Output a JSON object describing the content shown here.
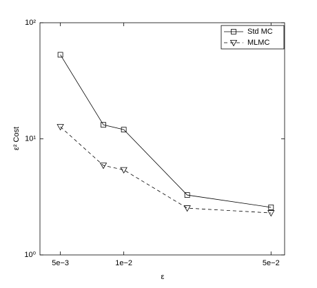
{
  "chart_data": {
    "type": "line",
    "x": [
      0.005,
      0.008,
      0.01,
      0.02,
      0.05
    ],
    "series": [
      {
        "name": "Std MC",
        "color": "#000000",
        "dash": "solid",
        "marker": "square",
        "values": [
          53,
          13.2,
          12.0,
          3.28,
          2.57
        ]
      },
      {
        "name": "MLMC",
        "color": "#000000",
        "dash": "dashed",
        "marker": "triangle-down",
        "values": [
          12.7,
          5.9,
          5.4,
          2.53,
          2.3
        ]
      }
    ],
    "xlabel": "ε",
    "ylabel": "ε² Cost",
    "xscale": "log",
    "yscale": "log",
    "xlim": [
      0.004,
      0.058
    ],
    "ylim": [
      1,
      100
    ],
    "xticks": [
      {
        "value": 0.005,
        "label": "5e−3"
      },
      {
        "value": 0.01,
        "label": "1e−2"
      },
      {
        "value": 0.05,
        "label": "5e−2"
      }
    ],
    "yticks": [
      {
        "value": 1,
        "label": "10⁰"
      },
      {
        "value": 10,
        "label": "10¹"
      },
      {
        "value": 100,
        "label": "10²"
      }
    ],
    "legend": "upper right",
    "grid": false
  }
}
